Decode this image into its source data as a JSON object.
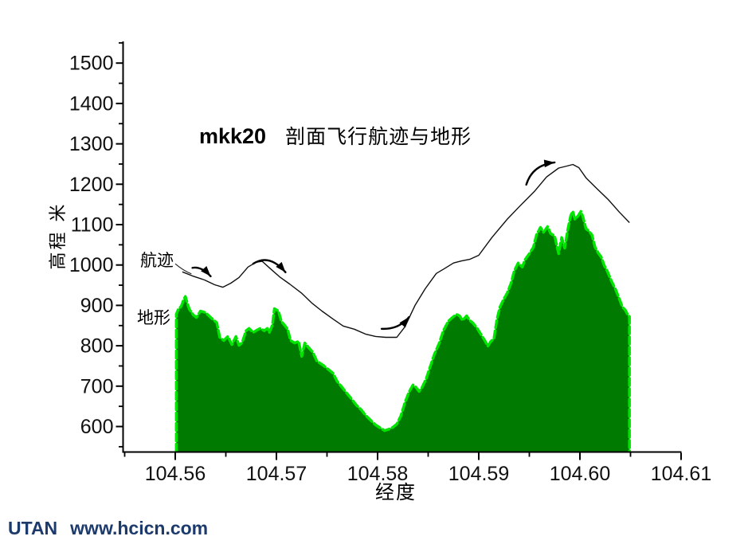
{
  "title": {
    "en": "mkk20",
    "zh": "剖面飞行航迹与地形"
  },
  "axes": {
    "ylabel": "高程 米",
    "xlabel": "经度"
  },
  "labels": {
    "track": "航迹",
    "terrain": "地形"
  },
  "watermark": {
    "brand": "UTAN",
    "url": "www.hcicn.com",
    "color": "#1c3a6b"
  },
  "chart_data": {
    "type": "area",
    "title": "mkk20 剖面飞行航迹与地形",
    "xlabel": "经度",
    "ylabel": "高程 米",
    "xlim": [
      104.555,
      104.61
    ],
    "ylim": [
      535,
      1555
    ],
    "x_ticks": [
      104.56,
      104.57,
      104.58,
      104.59,
      104.6,
      104.61
    ],
    "x_tick_labels": [
      "104.56",
      "104.57",
      "104.58",
      "104.59",
      "104.60",
      "104.61"
    ],
    "x_minor_ticks": [
      104.555,
      104.565,
      104.575,
      104.585,
      104.595,
      104.605
    ],
    "y_ticks": [
      600,
      700,
      800,
      900,
      1000,
      1100,
      1200,
      1300,
      1400,
      1500
    ],
    "y_tick_labels": [
      "600",
      "700",
      "800",
      "900",
      "1000",
      "1100",
      "1200",
      "1300",
      "1400",
      "1500"
    ],
    "y_minor_ticks": [
      550,
      650,
      750,
      850,
      950,
      1050,
      1150,
      1250,
      1350,
      1450,
      1550
    ],
    "grid": false,
    "legend_position": "inline-left",
    "colors": {
      "terrain_fill": "#007a00",
      "terrain_edge": "#00e600",
      "flight_line": "#101010",
      "axis": "#000000",
      "annotation": "#000000"
    },
    "series": [
      {
        "name": "航迹",
        "type": "line",
        "points": [
          [
            104.5607,
            983
          ],
          [
            104.5617,
            973
          ],
          [
            104.5629,
            963
          ],
          [
            104.5639,
            951
          ],
          [
            104.5647,
            945
          ],
          [
            104.5655,
            955
          ],
          [
            104.5663,
            969
          ],
          [
            104.5672,
            995
          ],
          [
            104.568,
            1007
          ],
          [
            104.5686,
            1009
          ],
          [
            104.5694,
            991
          ],
          [
            104.5703,
            971
          ],
          [
            104.5713,
            953
          ],
          [
            104.5725,
            930
          ],
          [
            104.5735,
            906
          ],
          [
            104.5745,
            886
          ],
          [
            104.5756,
            866
          ],
          [
            104.5766,
            849
          ],
          [
            104.5777,
            841
          ],
          [
            104.5788,
            829
          ],
          [
            104.5798,
            823
          ],
          [
            104.5808,
            821
          ],
          [
            104.5819,
            821
          ],
          [
            104.5827,
            847
          ],
          [
            104.5837,
            900
          ],
          [
            104.5847,
            941
          ],
          [
            104.5858,
            979
          ],
          [
            104.5866,
            991
          ],
          [
            104.5875,
            1005
          ],
          [
            104.5883,
            1010
          ],
          [
            104.5891,
            1014
          ],
          [
            104.59,
            1024
          ],
          [
            104.5913,
            1068
          ],
          [
            104.5928,
            1113
          ],
          [
            104.5941,
            1147
          ],
          [
            104.5955,
            1182
          ],
          [
            104.5967,
            1218
          ],
          [
            104.5979,
            1240
          ],
          [
            104.5987,
            1245
          ],
          [
            104.5993,
            1249
          ],
          [
            104.5999,
            1241
          ],
          [
            104.6006,
            1216
          ],
          [
            104.6018,
            1186
          ],
          [
            104.6028,
            1162
          ],
          [
            104.6039,
            1131
          ],
          [
            104.6049,
            1105
          ]
        ]
      },
      {
        "name": "地形",
        "type": "area",
        "points": [
          [
            104.5601,
            878
          ],
          [
            104.5603,
            890
          ],
          [
            104.5606,
            898
          ],
          [
            104.5608,
            912
          ],
          [
            104.561,
            922
          ],
          [
            104.5612,
            905
          ],
          [
            104.5614,
            890
          ],
          [
            104.5618,
            876
          ],
          [
            104.5621,
            870
          ],
          [
            104.5625,
            886
          ],
          [
            104.563,
            882
          ],
          [
            104.5635,
            870
          ],
          [
            104.5641,
            857
          ],
          [
            104.5644,
            821
          ],
          [
            104.5648,
            813
          ],
          [
            104.5652,
            823
          ],
          [
            104.5656,
            803
          ],
          [
            104.566,
            823
          ],
          [
            104.5663,
            801
          ],
          [
            104.5666,
            807
          ],
          [
            104.567,
            837
          ],
          [
            104.5673,
            843
          ],
          [
            104.5677,
            833
          ],
          [
            104.5681,
            839
          ],
          [
            104.5684,
            843
          ],
          [
            104.5688,
            837
          ],
          [
            104.5691,
            843
          ],
          [
            104.5693,
            833
          ],
          [
            104.5696,
            851
          ],
          [
            104.5698,
            892
          ],
          [
            104.5702,
            886
          ],
          [
            104.5705,
            860
          ],
          [
            104.5708,
            851
          ],
          [
            104.5711,
            841
          ],
          [
            104.5714,
            813
          ],
          [
            104.5718,
            807
          ],
          [
            104.5722,
            811
          ],
          [
            104.5725,
            774
          ],
          [
            104.5728,
            807
          ],
          [
            104.5732,
            795
          ],
          [
            104.5736,
            784
          ],
          [
            104.574,
            762
          ],
          [
            104.5746,
            752
          ],
          [
            104.5751,
            742
          ],
          [
            104.5756,
            732
          ],
          [
            104.576,
            712
          ],
          [
            104.5765,
            697
          ],
          [
            104.577,
            681
          ],
          [
            104.5774,
            669
          ],
          [
            104.5779,
            653
          ],
          [
            104.5784,
            641
          ],
          [
            104.5788,
            628
          ],
          [
            104.5793,
            616
          ],
          [
            104.5798,
            604
          ],
          [
            104.5803,
            596
          ],
          [
            104.5807,
            590
          ],
          [
            104.5812,
            594
          ],
          [
            104.5815,
            598
          ],
          [
            104.5819,
            606
          ],
          [
            104.5823,
            626
          ],
          [
            104.5827,
            659
          ],
          [
            104.5831,
            685
          ],
          [
            104.5835,
            703
          ],
          [
            104.5838,
            697
          ],
          [
            104.5841,
            687
          ],
          [
            104.5844,
            697
          ],
          [
            104.5848,
            718
          ],
          [
            104.5852,
            748
          ],
          [
            104.5856,
            778
          ],
          [
            104.5861,
            807
          ],
          [
            104.5865,
            837
          ],
          [
            104.587,
            861
          ],
          [
            104.5874,
            870
          ],
          [
            104.5878,
            878
          ],
          [
            104.5881,
            874
          ],
          [
            104.5884,
            863
          ],
          [
            104.5888,
            874
          ],
          [
            104.5891,
            863
          ],
          [
            104.5894,
            857
          ],
          [
            104.5898,
            845
          ],
          [
            104.5902,
            829
          ],
          [
            104.5906,
            813
          ],
          [
            104.5909,
            799
          ],
          [
            104.5912,
            811
          ],
          [
            104.5915,
            817
          ],
          [
            104.5918,
            866
          ],
          [
            104.5921,
            896
          ],
          [
            104.5924,
            912
          ],
          [
            104.5928,
            930
          ],
          [
            104.5932,
            955
          ],
          [
            104.5935,
            985
          ],
          [
            104.5939,
            1005
          ],
          [
            104.5943,
            995
          ],
          [
            104.5946,
            1014
          ],
          [
            104.595,
            1028
          ],
          [
            104.5954,
            1044
          ],
          [
            104.5957,
            1074
          ],
          [
            104.5961,
            1093
          ],
          [
            104.5964,
            1081
          ],
          [
            104.5968,
            1095
          ],
          [
            104.5971,
            1078
          ],
          [
            104.5975,
            1072
          ],
          [
            104.5979,
            1028
          ],
          [
            104.5982,
            1068
          ],
          [
            104.5985,
            1042
          ],
          [
            104.5988,
            1088
          ],
          [
            104.5991,
            1123
          ],
          [
            104.5993,
            1133
          ],
          [
            104.5995,
            1113
          ],
          [
            104.5998,
            1121
          ],
          [
            104.6001,
            1133
          ],
          [
            104.6003,
            1119
          ],
          [
            104.6006,
            1090
          ],
          [
            104.6009,
            1084
          ],
          [
            104.6012,
            1074
          ],
          [
            104.6015,
            1044
          ],
          [
            104.6018,
            1030
          ],
          [
            104.6021,
            1020
          ],
          [
            104.6024,
            999
          ],
          [
            104.6027,
            985
          ],
          [
            104.6031,
            961
          ],
          [
            104.6035,
            941
          ],
          [
            104.6039,
            916
          ],
          [
            104.6042,
            896
          ],
          [
            104.6045,
            888
          ],
          [
            104.6047,
            878
          ],
          [
            104.6049,
            872
          ]
        ]
      }
    ],
    "annotations": {
      "arrows": [
        {
          "from": [
            104.5617,
            993
          ],
          "ctrl": [
            104.5626,
            997
          ],
          "to": [
            104.5635,
            972
          ]
        },
        {
          "from": [
            104.5677,
            1003
          ],
          "ctrl": [
            104.5693,
            1029
          ],
          "to": [
            104.5709,
            982
          ]
        },
        {
          "from": [
            104.5804,
            842
          ],
          "ctrl": [
            104.5821,
            840
          ],
          "to": [
            104.5831,
            871
          ]
        },
        {
          "from": [
            104.5947,
            1199
          ],
          "ctrl": [
            104.5953,
            1248
          ],
          "to": [
            104.5975,
            1254
          ]
        }
      ],
      "pointer": {
        "from": [
          104.56,
          1003
        ],
        "ctrl": [
          104.5608,
          986
        ],
        "to": [
          104.5616,
          978
        ]
      }
    }
  }
}
